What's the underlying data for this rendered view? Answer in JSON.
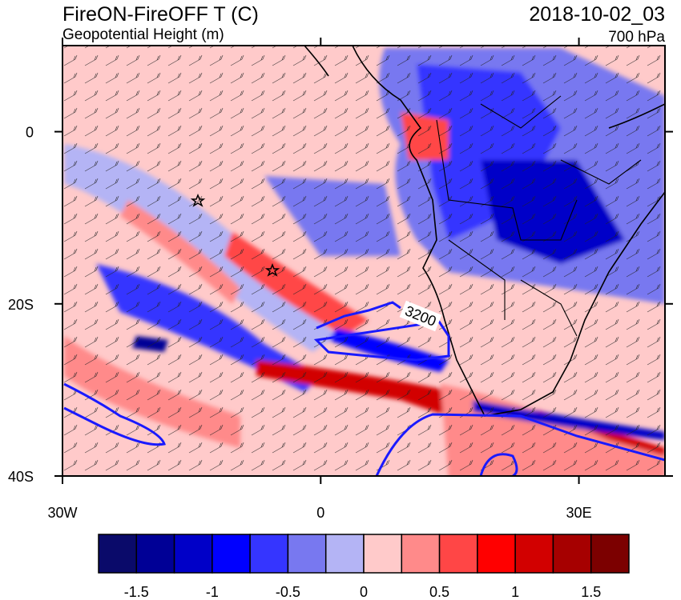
{
  "header": {
    "title": "FireON-FireOFF T (C)",
    "subtitle": "Geopotential Height (m)",
    "time": "2018-10-02_03",
    "level": "700 hPa"
  },
  "map": {
    "xlim": [
      -30,
      40
    ],
    "ylim": [
      -40,
      10
    ],
    "xticks": [
      {
        "value": -30,
        "label": "30W"
      },
      0,
      {
        "value": 30,
        "label": "30E"
      }
    ],
    "yticks": [
      0,
      {
        "value": -20,
        "label": "20S"
      },
      {
        "value": -40,
        "label": "40S"
      }
    ],
    "contour_label": "3200"
  },
  "colorbar": {
    "levels": [
      -1.5,
      -1.25,
      -1,
      -0.75,
      -0.5,
      -0.25,
      0,
      0.25,
      0.5,
      0.75,
      1,
      1.25,
      1.5
    ],
    "colors": [
      "#0a0a6a",
      "#000096",
      "#0000c8",
      "#0000ff",
      "#3535ff",
      "#7878f0",
      "#b4b4f5",
      "#ffcaca",
      "#ff8a8a",
      "#ff4646",
      "#ff0000",
      "#d20000",
      "#a60000",
      "#7c0000"
    ],
    "ticks": [
      -1.5,
      -1,
      -0.5,
      0,
      0.5,
      1,
      1.5
    ]
  }
}
